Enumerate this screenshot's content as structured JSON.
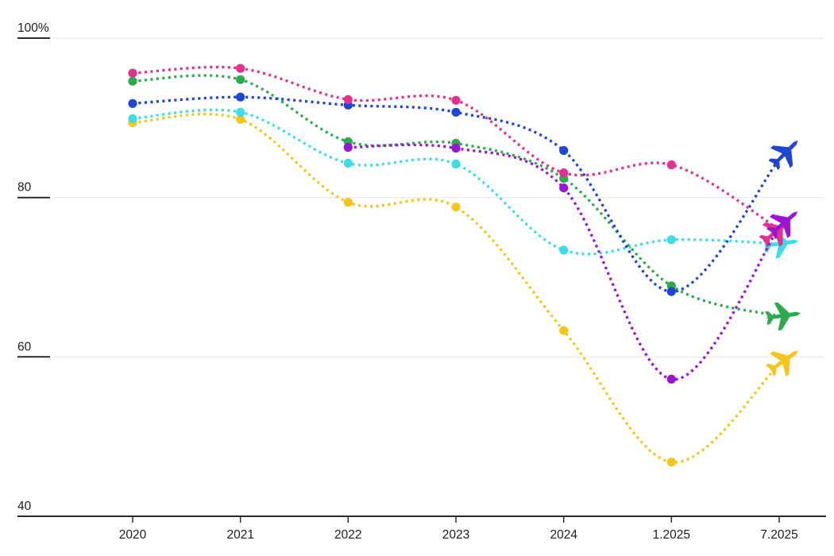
{
  "chart_data": {
    "type": "line",
    "title": "",
    "subtitle": "",
    "categories": [
      "2020",
      "2021",
      "2022",
      "2023",
      "2024",
      "1.2025",
      "7.2025"
    ],
    "xlabel": "",
    "ylabel": "",
    "y_axis": {
      "min": 40,
      "max": 100,
      "ticks": [
        {
          "value": 100,
          "label": "100%"
        },
        {
          "value": 80,
          "label": "80"
        },
        {
          "value": 60,
          "label": "60"
        },
        {
          "value": 40,
          "label": "40"
        }
      ]
    },
    "grid": "horizontal",
    "legend": "none",
    "line_style": "dotted",
    "point_marker": "circle",
    "end_marker": "airplane-icon",
    "series": [
      {
        "name": "yellow-airline",
        "color": "#F5C51C",
        "plane_angle": -35,
        "plane_offset": 7,
        "values": [
          89.4,
          89.8,
          79.4,
          78.8,
          63.3,
          46.8,
          59.1
        ]
      },
      {
        "name": "cyan-airline",
        "color": "#3CDDE6",
        "plane_angle": -8,
        "plane_offset": 2,
        "values": [
          89.9,
          90.7,
          84.3,
          84.2,
          73.4,
          74.7,
          74.2
        ]
      },
      {
        "name": "green-airline",
        "color": "#2BAB4C",
        "plane_angle": -8,
        "plane_offset": 5,
        "values": [
          94.6,
          94.8,
          87.0,
          86.8,
          82.4,
          68.9,
          65.1
        ]
      },
      {
        "name": "blue-airline",
        "color": "#1E46D1",
        "plane_angle": -45,
        "plane_offset": 11,
        "values": [
          91.8,
          92.6,
          91.6,
          90.7,
          85.9,
          68.2,
          84.8
        ]
      },
      {
        "name": "pink-airline",
        "color": "#E5318E",
        "plane_angle": -38,
        "plane_offset": -4,
        "values": [
          95.6,
          96.2,
          92.3,
          92.2,
          83.1,
          84.1,
          76.0
        ]
      },
      {
        "name": "purple-airline",
        "color": "#9A14D4",
        "plane_angle": -40,
        "plane_offset": 8,
        "values": [
          null,
          null,
          86.3,
          86.2,
          81.2,
          57.2,
          76.3
        ]
      }
    ],
    "colors": {
      "axis": "#2B2B2B",
      "gridline": "#E8E8E8",
      "label_text": "#1D1D1D"
    }
  }
}
